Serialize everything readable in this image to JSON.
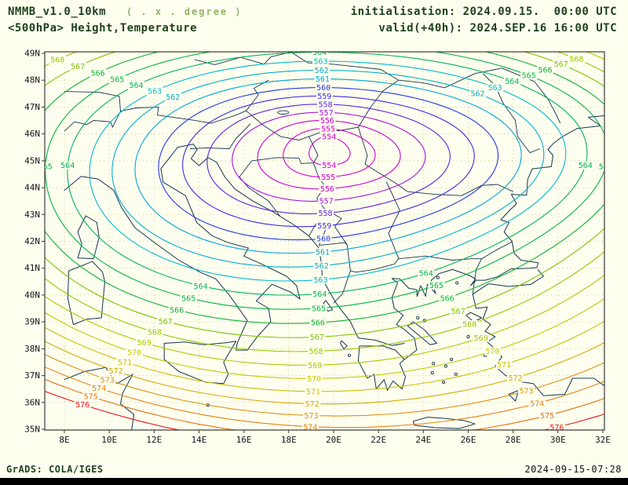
{
  "header": {
    "model": "NMMB_v1.0_10km",
    "grid_note": "( . x . degree )",
    "field": "<500hPa> Height,Temperature",
    "init": "initialisation: 2024.09.15.  00:00 UTC",
    "valid": "valid(+40h): 2024.SEP.16 16:00 UTC"
  },
  "footer": {
    "credit": "GrADS: COLA/IGES",
    "generated": "2024-09-15-07:28"
  },
  "colors": {
    "background": "#fffff0",
    "frame": "#3c3c32",
    "grid": "#c9cf86",
    "coastline": "#14344c",
    "header_text": "#1e421e",
    "note_text": "#90b464",
    "axis_text": "#141414",
    "bottom_bar": "#000000"
  },
  "chart_data": {
    "type": "contour",
    "title": "<500hPa> Height,Temperature",
    "model": "NMMB_v1.0_10km",
    "init_time": "2024.09.15. 00:00 UTC",
    "valid_time": "2024.SEP.16 16:00 UTC (+40h)",
    "projection": "latlon",
    "units": "dam",
    "grid": "dotted",
    "contour_interval": 1,
    "lon_range": [
      8,
      32
    ],
    "lat_range": [
      35,
      49
    ],
    "lon_ticks": [
      "8E",
      "10E",
      "12E",
      "14E",
      "16E",
      "18E",
      "20E",
      "22E",
      "24E",
      "26E",
      "28E",
      "30E",
      "32E"
    ],
    "lat_ticks": [
      "49N",
      "48N",
      "47N",
      "46N",
      "45N",
      "44N",
      "43N",
      "42N",
      "41N",
      "40N",
      "39N",
      "38N",
      "37N",
      "36N",
      "35N"
    ],
    "low_center": {
      "lon": 19.8,
      "lat": 45.3,
      "value": 554
    },
    "levels": [
      {
        "value": 554,
        "color": "#cd00cd"
      },
      {
        "value": 555,
        "color": "#cd00cd"
      },
      {
        "value": 556,
        "color": "#c300d2"
      },
      {
        "value": 557,
        "color": "#a014dc"
      },
      {
        "value": 558,
        "color": "#5a23e1"
      },
      {
        "value": 559,
        "color": "#3c28e6"
      },
      {
        "value": 560,
        "color": "#2337e6"
      },
      {
        "value": 561,
        "color": "#00a5d7"
      },
      {
        "value": 562,
        "color": "#00afc8"
      },
      {
        "value": 563,
        "color": "#00b9cd"
      },
      {
        "value": 564,
        "color": "#00b45a"
      },
      {
        "value": 565,
        "color": "#00b441"
      },
      {
        "value": 566,
        "color": "#0faf32"
      },
      {
        "value": 567,
        "color": "#7dc300"
      },
      {
        "value": 568,
        "color": "#96c800"
      },
      {
        "value": 569,
        "color": "#afc800"
      },
      {
        "value": 570,
        "color": "#c3c800"
      },
      {
        "value": 571,
        "color": "#cdbe00"
      },
      {
        "value": 572,
        "color": "#d2aa00"
      },
      {
        "value": 573,
        "color": "#dc9114"
      },
      {
        "value": 574,
        "color": "#e08214"
      },
      {
        "value": 575,
        "color": "#e07314"
      },
      {
        "value": 576,
        "color": "#e61414"
      }
    ]
  }
}
